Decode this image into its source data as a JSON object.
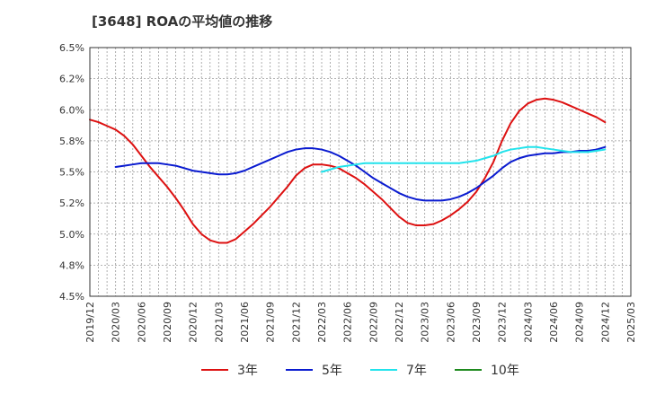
{
  "chart_data": {
    "type": "line",
    "title": "[3648]  ROAの平均値の推移",
    "xlabel": "",
    "ylabel": "",
    "ylim": [
      4.5,
      6.5
    ],
    "y_ticks": [
      "4.5%",
      "4.8%",
      "5.0%",
      "5.2%",
      "5.5%",
      "5.8%",
      "6.0%",
      "6.2%",
      "6.5%"
    ],
    "x_ticks": [
      "2019/12",
      "2020/03",
      "2020/06",
      "2020/09",
      "2020/12",
      "2021/03",
      "2021/06",
      "2021/09",
      "2021/12",
      "2022/03",
      "2022/06",
      "2022/09",
      "2022/12",
      "2023/03",
      "2023/06",
      "2023/09",
      "2023/12",
      "2024/03",
      "2024/06",
      "2024/09",
      "2024/12",
      "2025/03"
    ],
    "grid": true,
    "legend_position": "bottom",
    "series": [
      {
        "name": "3年",
        "color": "#dd1111",
        "points": [
          [
            "2019/12",
            5.92
          ],
          [
            "2020/01",
            5.9
          ],
          [
            "2020/02",
            5.87
          ],
          [
            "2020/03",
            5.84
          ],
          [
            "2020/04",
            5.79
          ],
          [
            "2020/05",
            5.72
          ],
          [
            "2020/06",
            5.63
          ],
          [
            "2020/07",
            5.54
          ],
          [
            "2020/08",
            5.46
          ],
          [
            "2020/09",
            5.38
          ],
          [
            "2020/10",
            5.29
          ],
          [
            "2020/11",
            5.19
          ],
          [
            "2020/12",
            5.08
          ],
          [
            "2021/01",
            5.0
          ],
          [
            "2021/02",
            4.95
          ],
          [
            "2021/03",
            4.93
          ],
          [
            "2021/04",
            4.93
          ],
          [
            "2021/05",
            4.96
          ],
          [
            "2021/06",
            5.02
          ],
          [
            "2021/07",
            5.08
          ],
          [
            "2021/08",
            5.15
          ],
          [
            "2021/09",
            5.22
          ],
          [
            "2021/10",
            5.3
          ],
          [
            "2021/11",
            5.38
          ],
          [
            "2021/12",
            5.47
          ],
          [
            "2022/01",
            5.53
          ],
          [
            "2022/02",
            5.56
          ],
          [
            "2022/03",
            5.56
          ],
          [
            "2022/04",
            5.55
          ],
          [
            "2022/05",
            5.53
          ],
          [
            "2022/06",
            5.49
          ],
          [
            "2022/07",
            5.45
          ],
          [
            "2022/08",
            5.4
          ],
          [
            "2022/09",
            5.34
          ],
          [
            "2022/10",
            5.28
          ],
          [
            "2022/11",
            5.21
          ],
          [
            "2022/12",
            5.14
          ],
          [
            "2023/01",
            5.09
          ],
          [
            "2023/02",
            5.07
          ],
          [
            "2023/03",
            5.07
          ],
          [
            "2023/04",
            5.08
          ],
          [
            "2023/05",
            5.11
          ],
          [
            "2023/06",
            5.15
          ],
          [
            "2023/07",
            5.2
          ],
          [
            "2023/08",
            5.26
          ],
          [
            "2023/09",
            5.34
          ],
          [
            "2023/10",
            5.45
          ],
          [
            "2023/11",
            5.58
          ],
          [
            "2023/12",
            5.75
          ],
          [
            "2024/01",
            5.89
          ],
          [
            "2024/02",
            5.99
          ],
          [
            "2024/03",
            6.05
          ],
          [
            "2024/04",
            6.08
          ],
          [
            "2024/05",
            6.09
          ],
          [
            "2024/06",
            6.08
          ],
          [
            "2024/07",
            6.06
          ],
          [
            "2024/08",
            6.03
          ],
          [
            "2024/09",
            6.0
          ],
          [
            "2024/10",
            5.97
          ],
          [
            "2024/11",
            5.94
          ],
          [
            "2024/12",
            5.9
          ]
        ]
      },
      {
        "name": "5年",
        "color": "#0a1bd0",
        "points": [
          [
            "2020/03",
            5.54
          ],
          [
            "2020/04",
            5.55
          ],
          [
            "2020/05",
            5.56
          ],
          [
            "2020/06",
            5.57
          ],
          [
            "2020/07",
            5.57
          ],
          [
            "2020/08",
            5.57
          ],
          [
            "2020/09",
            5.56
          ],
          [
            "2020/10",
            5.55
          ],
          [
            "2020/11",
            5.53
          ],
          [
            "2020/12",
            5.51
          ],
          [
            "2021/01",
            5.5
          ],
          [
            "2021/02",
            5.49
          ],
          [
            "2021/03",
            5.48
          ],
          [
            "2021/04",
            5.48
          ],
          [
            "2021/05",
            5.49
          ],
          [
            "2021/06",
            5.51
          ],
          [
            "2021/07",
            5.54
          ],
          [
            "2021/08",
            5.57
          ],
          [
            "2021/09",
            5.6
          ],
          [
            "2021/10",
            5.63
          ],
          [
            "2021/11",
            5.66
          ],
          [
            "2021/12",
            5.68
          ],
          [
            "2022/01",
            5.69
          ],
          [
            "2022/02",
            5.69
          ],
          [
            "2022/03",
            5.68
          ],
          [
            "2022/04",
            5.66
          ],
          [
            "2022/05",
            5.63
          ],
          [
            "2022/06",
            5.59
          ],
          [
            "2022/07",
            5.55
          ],
          [
            "2022/08",
            5.5
          ],
          [
            "2022/09",
            5.45
          ],
          [
            "2022/10",
            5.41
          ],
          [
            "2022/11",
            5.37
          ],
          [
            "2022/12",
            5.33
          ],
          [
            "2023/01",
            5.3
          ],
          [
            "2023/02",
            5.28
          ],
          [
            "2023/03",
            5.27
          ],
          [
            "2023/04",
            5.27
          ],
          [
            "2023/05",
            5.27
          ],
          [
            "2023/06",
            5.28
          ],
          [
            "2023/07",
            5.3
          ],
          [
            "2023/08",
            5.33
          ],
          [
            "2023/09",
            5.37
          ],
          [
            "2023/10",
            5.42
          ],
          [
            "2023/11",
            5.47
          ],
          [
            "2023/12",
            5.53
          ],
          [
            "2024/01",
            5.58
          ],
          [
            "2024/02",
            5.61
          ],
          [
            "2024/03",
            5.63
          ],
          [
            "2024/04",
            5.64
          ],
          [
            "2024/05",
            5.65
          ],
          [
            "2024/06",
            5.65
          ],
          [
            "2024/07",
            5.66
          ],
          [
            "2024/08",
            5.66
          ],
          [
            "2024/09",
            5.67
          ],
          [
            "2024/10",
            5.67
          ],
          [
            "2024/11",
            5.68
          ],
          [
            "2024/12",
            5.7
          ]
        ]
      },
      {
        "name": "7年",
        "color": "#22e3ec",
        "points": [
          [
            "2022/03",
            5.5
          ],
          [
            "2022/04",
            5.52
          ],
          [
            "2022/05",
            5.54
          ],
          [
            "2022/06",
            5.55
          ],
          [
            "2022/07",
            5.56
          ],
          [
            "2022/08",
            5.57
          ],
          [
            "2022/09",
            5.57
          ],
          [
            "2022/10",
            5.57
          ],
          [
            "2022/11",
            5.57
          ],
          [
            "2022/12",
            5.57
          ],
          [
            "2023/01",
            5.57
          ],
          [
            "2023/02",
            5.57
          ],
          [
            "2023/03",
            5.57
          ],
          [
            "2023/04",
            5.57
          ],
          [
            "2023/05",
            5.57
          ],
          [
            "2023/06",
            5.57
          ],
          [
            "2023/07",
            5.57
          ],
          [
            "2023/08",
            5.58
          ],
          [
            "2023/09",
            5.59
          ],
          [
            "2023/10",
            5.61
          ],
          [
            "2023/11",
            5.63
          ],
          [
            "2023/12",
            5.66
          ],
          [
            "2024/01",
            5.68
          ],
          [
            "2024/02",
            5.69
          ],
          [
            "2024/03",
            5.7
          ],
          [
            "2024/04",
            5.7
          ],
          [
            "2024/05",
            5.69
          ],
          [
            "2024/06",
            5.68
          ],
          [
            "2024/07",
            5.67
          ],
          [
            "2024/08",
            5.66
          ],
          [
            "2024/09",
            5.66
          ],
          [
            "2024/10",
            5.66
          ],
          [
            "2024/11",
            5.67
          ],
          [
            "2024/12",
            5.68
          ]
        ]
      },
      {
        "name": "10年",
        "color": "#1e8a1e",
        "points": []
      }
    ]
  }
}
